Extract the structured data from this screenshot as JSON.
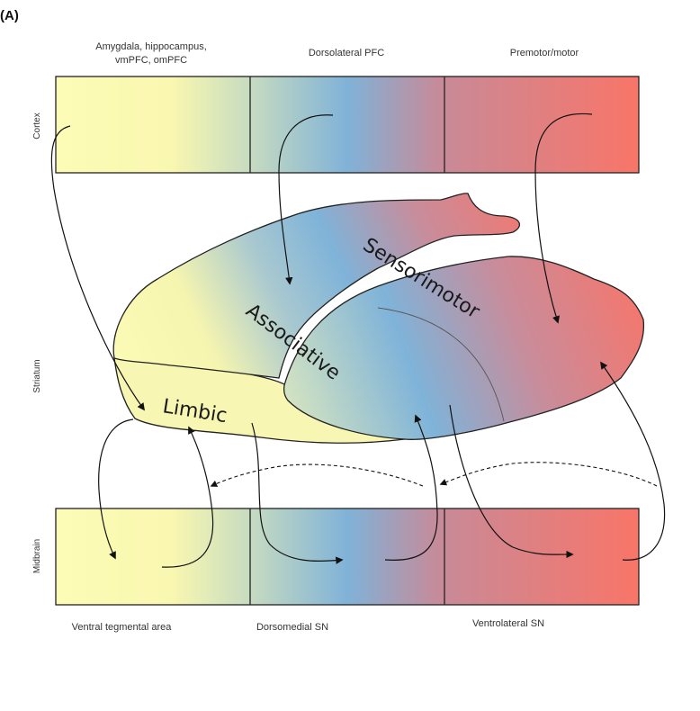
{
  "panel_label": "(A)",
  "top_labels": {
    "left_line1": "Amygdala, hippocampus,",
    "left_line2": "vmPFC, omPFC",
    "middle": "Dorsolateral PFC",
    "right": "Premotor/motor"
  },
  "bottom_labels": {
    "left": "Ventral tegmental area",
    "middle": "Dorsomedial SN",
    "right": "Ventrolateral SN"
  },
  "side_labels": {
    "cortex": "Cortex",
    "striatum": "Striatum",
    "midbrain": "Midbrain"
  },
  "region_labels": {
    "sensorimotor": "Sensorimotor",
    "associative": "Associative",
    "limbic": "Limbic"
  },
  "colors": {
    "limbic": "#fbfbb4",
    "associative": "#7fb3d9",
    "sensorimotor": "#f7756a",
    "outline": "#222222"
  }
}
